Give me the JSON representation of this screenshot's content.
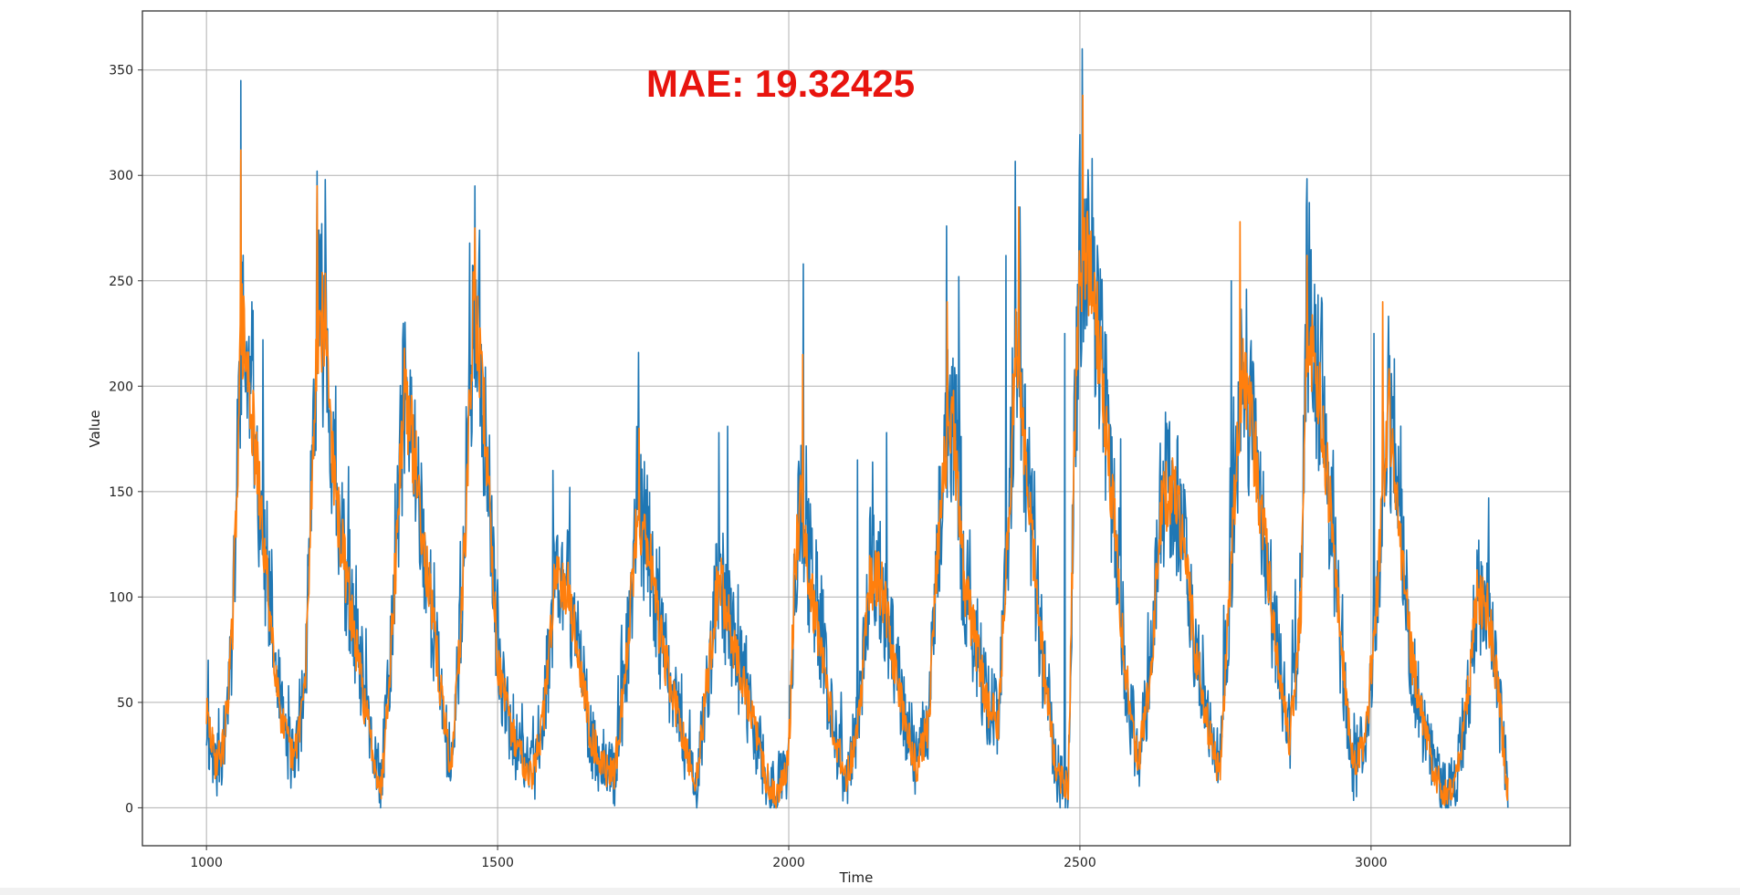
{
  "chart_data": {
    "type": "line",
    "annotation": "MAE: 19.32425",
    "xlabel": "Time",
    "ylabel": "Value",
    "xlim": [
      890,
      3342
    ],
    "ylim": [
      -18,
      378
    ],
    "xticks": [
      1000,
      1500,
      2000,
      2500,
      3000
    ],
    "yticks": [
      0,
      50,
      100,
      150,
      200,
      250,
      300,
      350
    ],
    "grid": true,
    "x_start": 1000,
    "x_end": 3235,
    "series": [
      {
        "color": "#1f77b4",
        "envelope": [
          [
            1000,
            40
          ],
          [
            1015,
            20
          ],
          [
            1030,
            30
          ],
          [
            1045,
            85
          ],
          [
            1060,
            230
          ],
          [
            1075,
            195
          ],
          [
            1090,
            150
          ],
          [
            1110,
            90
          ],
          [
            1130,
            40
          ],
          [
            1150,
            22
          ],
          [
            1170,
            60
          ],
          [
            1190,
            230
          ],
          [
            1205,
            230
          ],
          [
            1220,
            150
          ],
          [
            1240,
            110
          ],
          [
            1260,
            70
          ],
          [
            1280,
            35
          ],
          [
            1300,
            8
          ],
          [
            1320,
            90
          ],
          [
            1340,
            200
          ],
          [
            1360,
            160
          ],
          [
            1380,
            110
          ],
          [
            1400,
            60
          ],
          [
            1420,
            18
          ],
          [
            1440,
            100
          ],
          [
            1460,
            245
          ],
          [
            1480,
            175
          ],
          [
            1500,
            70
          ],
          [
            1520,
            40
          ],
          [
            1540,
            25
          ],
          [
            1560,
            15
          ],
          [
            1580,
            45
          ],
          [
            1600,
            115
          ],
          [
            1620,
            105
          ],
          [
            1640,
            70
          ],
          [
            1660,
            35
          ],
          [
            1680,
            20
          ],
          [
            1700,
            15
          ],
          [
            1720,
            65
          ],
          [
            1740,
            140
          ],
          [
            1760,
            125
          ],
          [
            1780,
            80
          ],
          [
            1800,
            55
          ],
          [
            1820,
            30
          ],
          [
            1840,
            10
          ],
          [
            1860,
            60
          ],
          [
            1880,
            110
          ],
          [
            1900,
            85
          ],
          [
            1920,
            60
          ],
          [
            1940,
            40
          ],
          [
            1960,
            15
          ],
          [
            1980,
            5
          ],
          [
            2000,
            25
          ],
          [
            2010,
            110
          ],
          [
            2020,
            150
          ],
          [
            2040,
            100
          ],
          [
            2060,
            70
          ],
          [
            2080,
            30
          ],
          [
            2100,
            15
          ],
          [
            2120,
            40
          ],
          [
            2140,
            110
          ],
          [
            2160,
            105
          ],
          [
            2180,
            70
          ],
          [
            2200,
            40
          ],
          [
            2220,
            20
          ],
          [
            2240,
            40
          ],
          [
            2260,
            140
          ],
          [
            2280,
            190
          ],
          [
            2300,
            110
          ],
          [
            2320,
            80
          ],
          [
            2340,
            50
          ],
          [
            2360,
            40
          ],
          [
            2380,
            150
          ],
          [
            2390,
            220
          ],
          [
            2410,
            160
          ],
          [
            2420,
            120
          ],
          [
            2440,
            60
          ],
          [
            2460,
            15
          ],
          [
            2480,
            10
          ],
          [
            2490,
            160
          ],
          [
            2500,
            260
          ],
          [
            2520,
            255
          ],
          [
            2540,
            200
          ],
          [
            2560,
            130
          ],
          [
            2580,
            60
          ],
          [
            2600,
            20
          ],
          [
            2620,
            60
          ],
          [
            2640,
            140
          ],
          [
            2660,
            155
          ],
          [
            2680,
            120
          ],
          [
            2700,
            70
          ],
          [
            2720,
            40
          ],
          [
            2740,
            15
          ],
          [
            2760,
            120
          ],
          [
            2780,
            210
          ],
          [
            2800,
            170
          ],
          [
            2820,
            120
          ],
          [
            2840,
            70
          ],
          [
            2860,
            30
          ],
          [
            2880,
            100
          ],
          [
            2890,
            230
          ],
          [
            2910,
            200
          ],
          [
            2930,
            140
          ],
          [
            2950,
            70
          ],
          [
            2970,
            20
          ],
          [
            2990,
            30
          ],
          [
            3010,
            100
          ],
          [
            3030,
            190
          ],
          [
            3050,
            130
          ],
          [
            3070,
            70
          ],
          [
            3090,
            40
          ],
          [
            3110,
            15
          ],
          [
            3130,
            5
          ],
          [
            3150,
            20
          ],
          [
            3170,
            60
          ],
          [
            3180,
            100
          ],
          [
            3200,
            95
          ],
          [
            3220,
            50
          ],
          [
            3235,
            8
          ]
        ],
        "peaks": [
          [
            1003,
            70
          ],
          [
            1059,
            345
          ],
          [
            1078,
            240
          ],
          [
            1097,
            222
          ],
          [
            1190,
            302
          ],
          [
            1204,
            298
          ],
          [
            1222,
            200
          ],
          [
            1337,
            222
          ],
          [
            1461,
            295
          ],
          [
            1595,
            160
          ],
          [
            1624,
            152
          ],
          [
            1742,
            216
          ],
          [
            1880,
            178
          ],
          [
            1895,
            181
          ],
          [
            2025,
            258
          ],
          [
            2118,
            165
          ],
          [
            2144,
            164
          ],
          [
            2168,
            178
          ],
          [
            2271,
            276
          ],
          [
            2292,
            252
          ],
          [
            2373,
            262
          ],
          [
            2397,
            285
          ],
          [
            2474,
            225
          ],
          [
            2504,
            360
          ],
          [
            2521,
            308
          ],
          [
            2570,
            175
          ],
          [
            2653,
            180
          ],
          [
            2760,
            250
          ],
          [
            2786,
            246
          ],
          [
            2889,
            285
          ],
          [
            2915,
            242
          ],
          [
            3005,
            225
          ],
          [
            3040,
            213
          ],
          [
            3202,
            147
          ]
        ],
        "noise_amp": 40,
        "seed": 11
      },
      {
        "color": "#ff7f0e",
        "envelope": [
          [
            1000,
            45
          ],
          [
            1015,
            22
          ],
          [
            1030,
            30
          ],
          [
            1045,
            85
          ],
          [
            1060,
            230
          ],
          [
            1075,
            195
          ],
          [
            1090,
            150
          ],
          [
            1110,
            90
          ],
          [
            1130,
            40
          ],
          [
            1150,
            22
          ],
          [
            1170,
            60
          ],
          [
            1190,
            230
          ],
          [
            1205,
            230
          ],
          [
            1220,
            150
          ],
          [
            1240,
            110
          ],
          [
            1260,
            70
          ],
          [
            1280,
            35
          ],
          [
            1300,
            8
          ],
          [
            1320,
            90
          ],
          [
            1340,
            200
          ],
          [
            1360,
            160
          ],
          [
            1380,
            110
          ],
          [
            1400,
            60
          ],
          [
            1420,
            18
          ],
          [
            1440,
            100
          ],
          [
            1460,
            245
          ],
          [
            1480,
            175
          ],
          [
            1500,
            70
          ],
          [
            1520,
            40
          ],
          [
            1540,
            25
          ],
          [
            1560,
            15
          ],
          [
            1580,
            45
          ],
          [
            1600,
            115
          ],
          [
            1620,
            105
          ],
          [
            1640,
            70
          ],
          [
            1660,
            35
          ],
          [
            1680,
            20
          ],
          [
            1700,
            15
          ],
          [
            1720,
            65
          ],
          [
            1740,
            140
          ],
          [
            1760,
            125
          ],
          [
            1780,
            80
          ],
          [
            1800,
            55
          ],
          [
            1820,
            30
          ],
          [
            1840,
            10
          ],
          [
            1860,
            60
          ],
          [
            1880,
            110
          ],
          [
            1900,
            85
          ],
          [
            1920,
            60
          ],
          [
            1940,
            40
          ],
          [
            1960,
            15
          ],
          [
            1980,
            5
          ],
          [
            2000,
            25
          ],
          [
            2010,
            110
          ],
          [
            2020,
            150
          ],
          [
            2040,
            100
          ],
          [
            2060,
            70
          ],
          [
            2080,
            30
          ],
          [
            2100,
            15
          ],
          [
            2120,
            40
          ],
          [
            2140,
            110
          ],
          [
            2160,
            105
          ],
          [
            2180,
            70
          ],
          [
            2200,
            40
          ],
          [
            2220,
            20
          ],
          [
            2240,
            40
          ],
          [
            2260,
            140
          ],
          [
            2280,
            190
          ],
          [
            2300,
            110
          ],
          [
            2320,
            80
          ],
          [
            2340,
            50
          ],
          [
            2360,
            40
          ],
          [
            2380,
            150
          ],
          [
            2390,
            220
          ],
          [
            2410,
            160
          ],
          [
            2420,
            120
          ],
          [
            2440,
            60
          ],
          [
            2460,
            15
          ],
          [
            2480,
            10
          ],
          [
            2490,
            160
          ],
          [
            2500,
            260
          ],
          [
            2520,
            255
          ],
          [
            2540,
            200
          ],
          [
            2560,
            130
          ],
          [
            2580,
            60
          ],
          [
            2600,
            20
          ],
          [
            2620,
            60
          ],
          [
            2640,
            140
          ],
          [
            2660,
            155
          ],
          [
            2680,
            120
          ],
          [
            2700,
            70
          ],
          [
            2720,
            40
          ],
          [
            2740,
            15
          ],
          [
            2760,
            120
          ],
          [
            2780,
            210
          ],
          [
            2800,
            170
          ],
          [
            2820,
            120
          ],
          [
            2840,
            70
          ],
          [
            2860,
            30
          ],
          [
            2880,
            100
          ],
          [
            2890,
            230
          ],
          [
            2910,
            200
          ],
          [
            2930,
            140
          ],
          [
            2950,
            70
          ],
          [
            2970,
            20
          ],
          [
            2990,
            30
          ],
          [
            3010,
            100
          ],
          [
            3030,
            190
          ],
          [
            3050,
            130
          ],
          [
            3070,
            70
          ],
          [
            3090,
            40
          ],
          [
            3110,
            15
          ],
          [
            3130,
            5
          ],
          [
            3150,
            20
          ],
          [
            3170,
            60
          ],
          [
            3180,
            100
          ],
          [
            3200,
            95
          ],
          [
            3220,
            50
          ],
          [
            3235,
            8
          ]
        ],
        "peaks": [
          [
            1059,
            312
          ],
          [
            1190,
            295
          ],
          [
            1340,
            218
          ],
          [
            1461,
            275
          ],
          [
            1743,
            180
          ],
          [
            2024,
            215
          ],
          [
            2272,
            240
          ],
          [
            2395,
            285
          ],
          [
            2505,
            338
          ],
          [
            2775,
            278
          ],
          [
            2890,
            262
          ],
          [
            3020,
            240
          ]
        ],
        "noise_amp": 20,
        "seed": 29
      }
    ]
  },
  "colors": {
    "annotation": "#e8140e",
    "grid": "#b0b0b0",
    "frame": "#333333"
  }
}
